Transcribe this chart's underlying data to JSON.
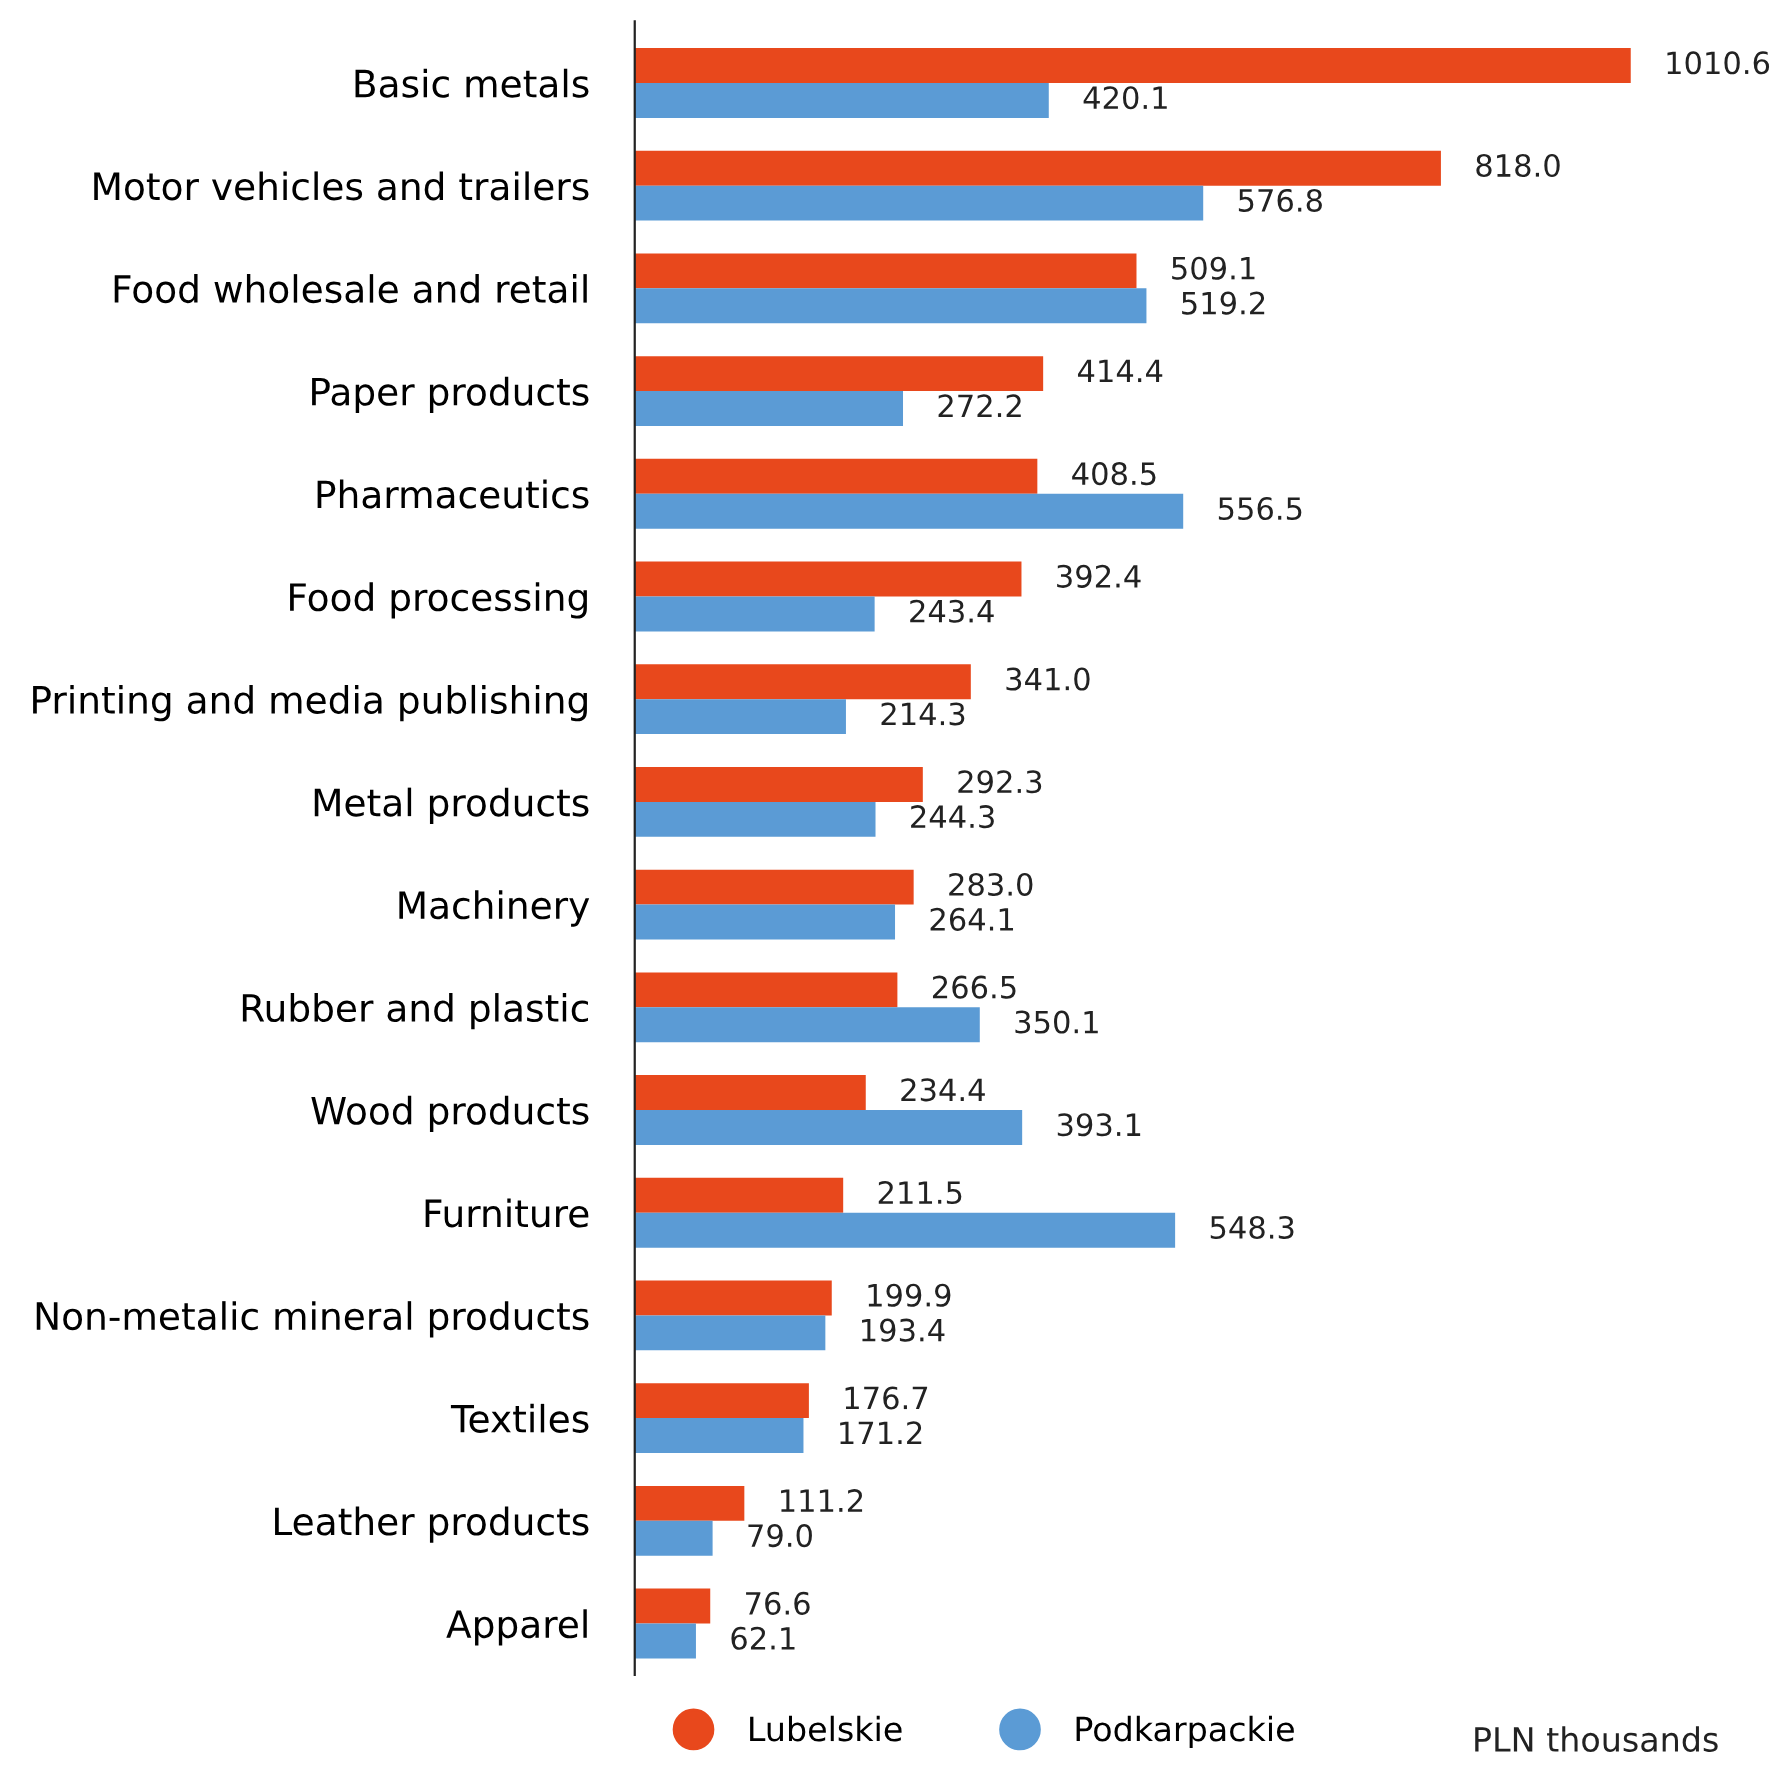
{
  "chart_data": {
    "type": "bar",
    "orientation": "horizontal",
    "categories": [
      "Basic metals",
      "Motor vehicles and trailers",
      "Food wholesale and retail",
      "Paper products",
      "Pharmaceutics",
      "Food processing",
      "Printing and media publishing",
      "Metal products",
      "Machinery",
      "Rubber and plastic",
      "Wood products",
      "Furniture",
      "Non-metalic mineral products",
      "Textiles",
      "Leather products",
      "Apparel"
    ],
    "series": [
      {
        "name": "Lubelskie",
        "color": "#e8481c",
        "values": [
          1010.6,
          818.0,
          509.1,
          414.4,
          408.5,
          392.4,
          341.0,
          292.3,
          283.0,
          266.5,
          234.4,
          211.5,
          199.9,
          176.7,
          111.2,
          76.6
        ],
        "value_labels": [
          "1010.6",
          "818.0",
          "509.1",
          "414.4",
          "408.5",
          "392.4",
          "341.0",
          "292.3",
          "283.0",
          "266.5",
          "234.4",
          "211.5",
          "199.9",
          "176.7",
          "111.2",
          "76.6"
        ]
      },
      {
        "name": "Podkarpackie",
        "color": "#5b9bd5",
        "values": [
          420.1,
          576.8,
          519.2,
          272.2,
          556.5,
          243.4,
          214.3,
          244.3,
          264.1,
          350.1,
          393.1,
          548.3,
          193.4,
          171.2,
          79.0,
          62.1
        ],
        "value_labels": [
          "420.1",
          "576.8",
          "519.2",
          "272.2",
          "556.5",
          "243.4",
          "214.3",
          "244.3",
          "264.1",
          "350.1",
          "393.1",
          "548.3",
          "193.4",
          "171.2",
          "79.0",
          "62.1"
        ]
      }
    ],
    "tick_labels": "y",
    "grid": false,
    "legend": "bottom",
    "annotations": [
      "PLN thousands"
    ]
  }
}
